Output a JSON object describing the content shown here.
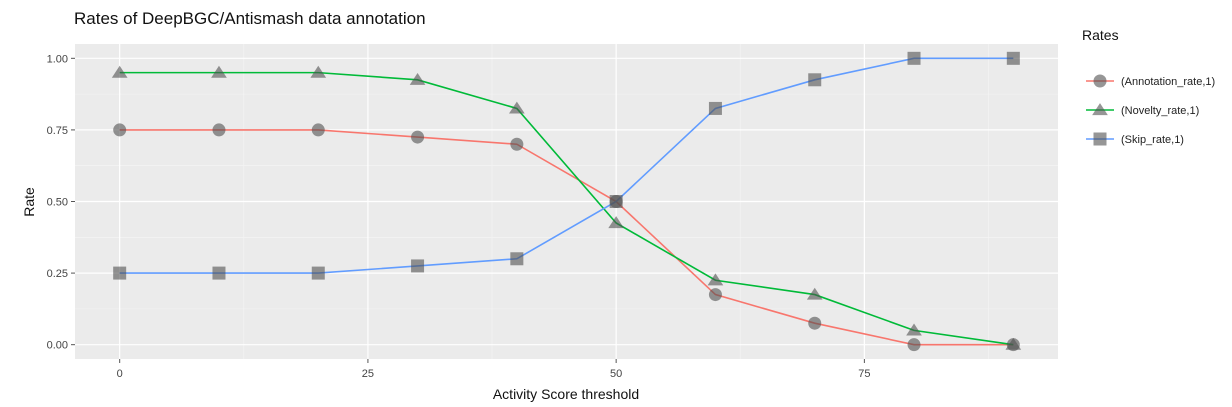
{
  "chart_data": {
    "type": "line",
    "title": "Rates of DeepBGC/Antismash data annotation",
    "xlabel": "Activity Score threshold",
    "ylabel": "Rate",
    "xlim": [
      -4.5,
      94.5
    ],
    "ylim": [
      -0.05,
      1.05
    ],
    "xticks": [
      0,
      25,
      50,
      75
    ],
    "xtick_labels": [
      "0",
      "25",
      "50",
      "75"
    ],
    "yticks": [
      0,
      0.25,
      0.5,
      0.75,
      1.0
    ],
    "ytick_labels": [
      "0.00",
      "0.25",
      "0.50",
      "0.75",
      "1.00"
    ],
    "grid": true,
    "legend_title": "Rates",
    "legend_position": "right",
    "x": [
      0,
      10,
      20,
      30,
      40,
      50,
      60,
      70,
      80,
      90
    ],
    "series": [
      {
        "name": "(Annotation_rate,1)",
        "color": "#F8766D",
        "marker": "circle",
        "values": [
          0.75,
          0.75,
          0.75,
          0.725,
          0.7,
          0.5,
          0.175,
          0.075,
          0.0,
          0.0
        ]
      },
      {
        "name": "(Novelty_rate,1)",
        "color": "#00BA38",
        "marker": "triangle",
        "values": [
          0.95,
          0.95,
          0.95,
          0.925,
          0.825,
          0.425,
          0.225,
          0.175,
          0.05,
          0.0
        ]
      },
      {
        "name": "(Skip_rate,1)",
        "color": "#619CFF",
        "marker": "square",
        "values": [
          0.25,
          0.25,
          0.25,
          0.275,
          0.3,
          0.5,
          0.825,
          0.925,
          1.0,
          1.0
        ]
      }
    ]
  }
}
